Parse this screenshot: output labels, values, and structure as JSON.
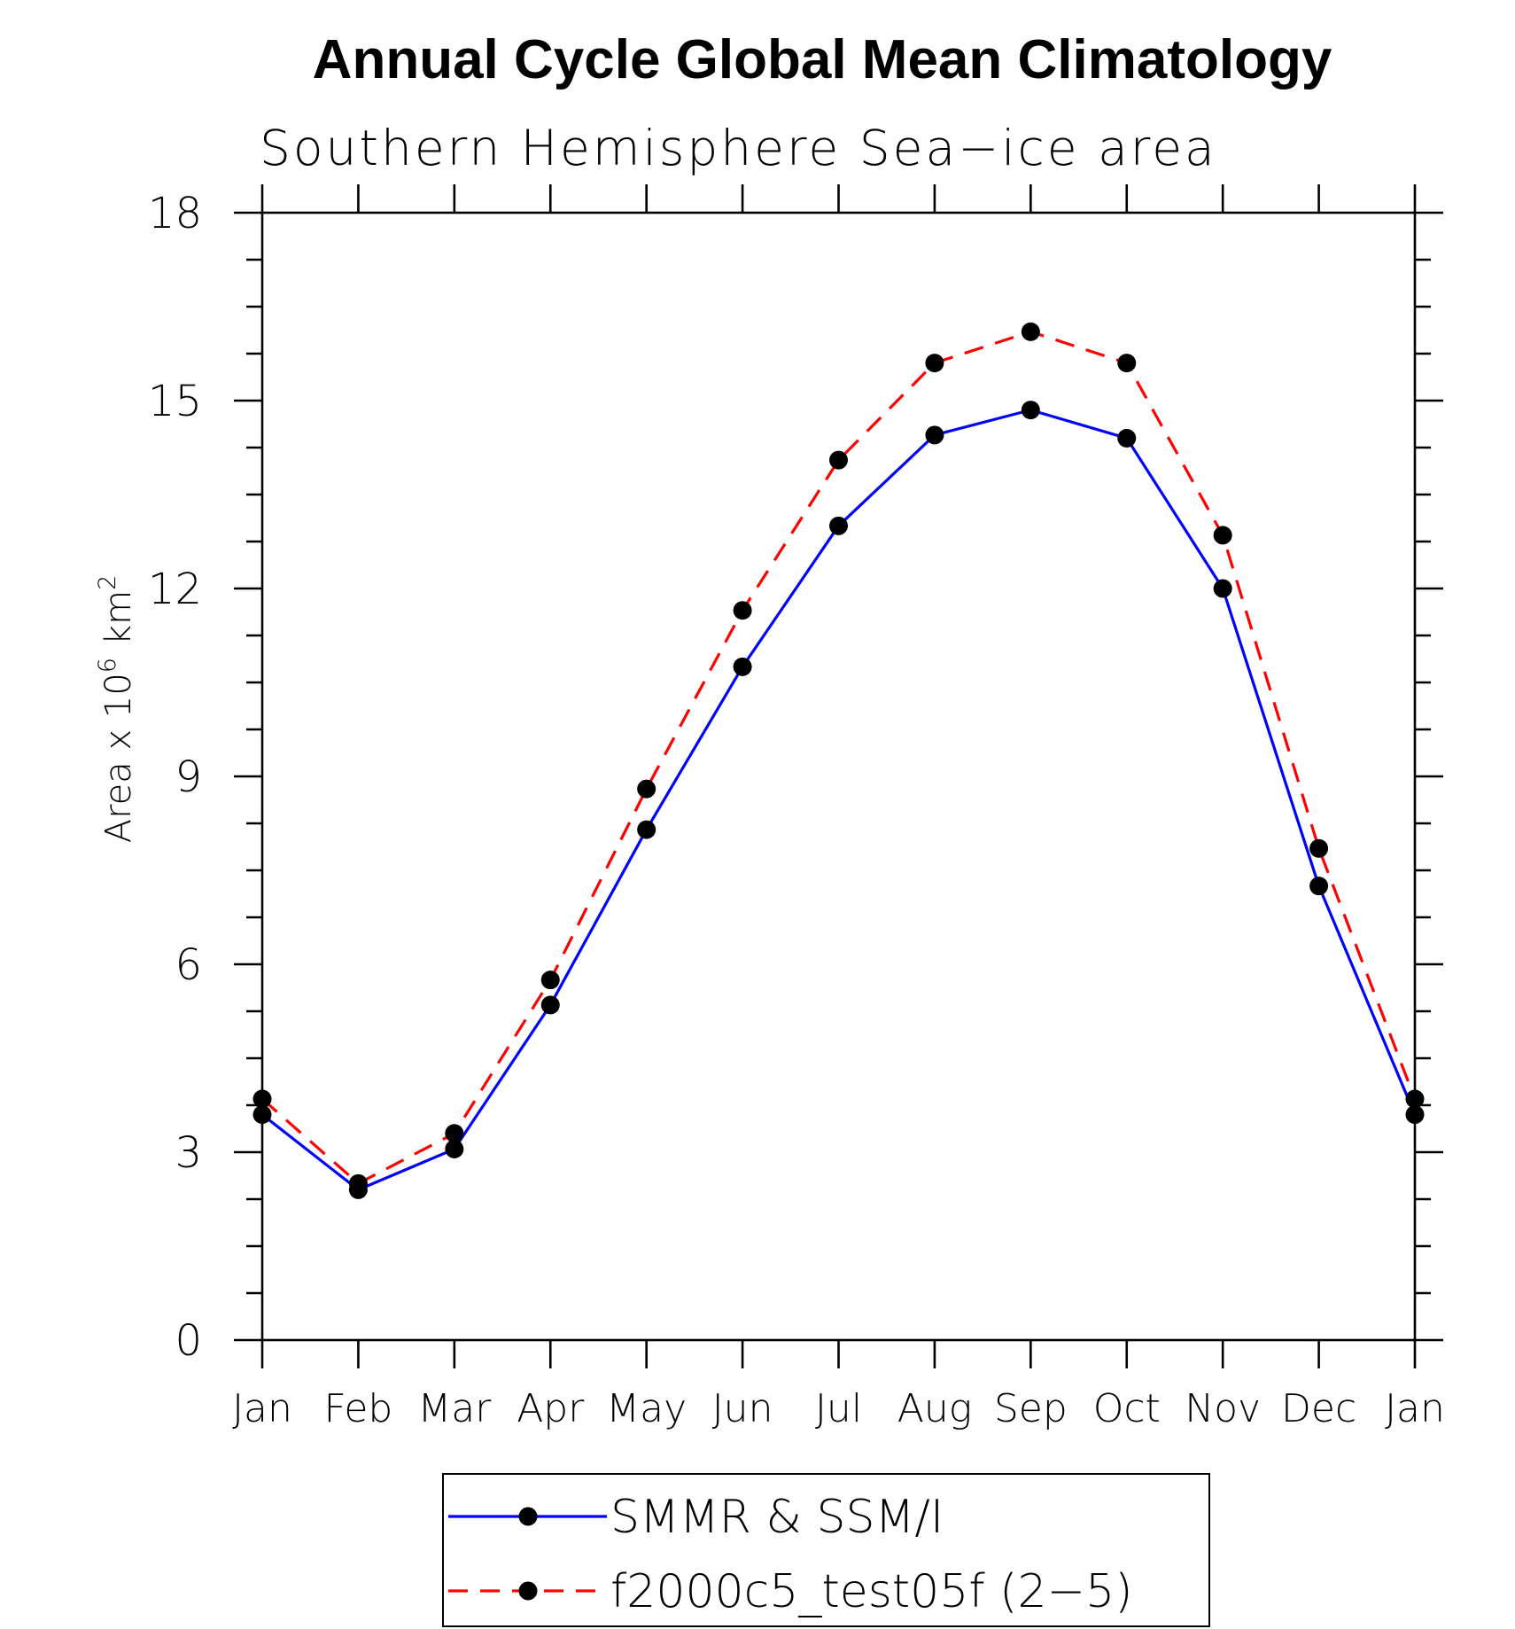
{
  "chart_data": {
    "type": "line",
    "title": "Annual Cycle Global Mean Climatology",
    "subtitle": "Southern Hemisphere Sea−ice area",
    "ylabel": "Area x 10^6 km^2",
    "ylabel_parts": {
      "base": "Area x 10",
      "exp1": "6",
      "unit": "km",
      "exp2": "2"
    },
    "categories": [
      "Jan",
      "Feb",
      "Mar",
      "Apr",
      "May",
      "Jun",
      "Jul",
      "Aug",
      "Sep",
      "Oct",
      "Nov",
      "Dec",
      "Jan"
    ],
    "ylim": [
      0,
      18
    ],
    "yticks": [
      "0",
      "3",
      "6",
      "9",
      "12",
      "15",
      "18"
    ],
    "series": [
      {
        "name": "SMMR & SSM/I",
        "color": "#0000ff",
        "dash": "solid",
        "values": [
          3.6,
          2.4,
          3.05,
          5.35,
          8.15,
          10.75,
          13.0,
          14.45,
          14.85,
          14.4,
          12.0,
          7.25,
          3.6
        ]
      },
      {
        "name": "f2000c5_test05f (2−5)",
        "color": "#ff0000",
        "dash": "dashed",
        "values": [
          3.85,
          2.5,
          3.3,
          5.75,
          8.8,
          11.65,
          14.05,
          15.6,
          16.1,
          15.6,
          12.85,
          7.85,
          3.85
        ]
      }
    ],
    "marker_color": "#000000",
    "legend_position": "bottom"
  }
}
